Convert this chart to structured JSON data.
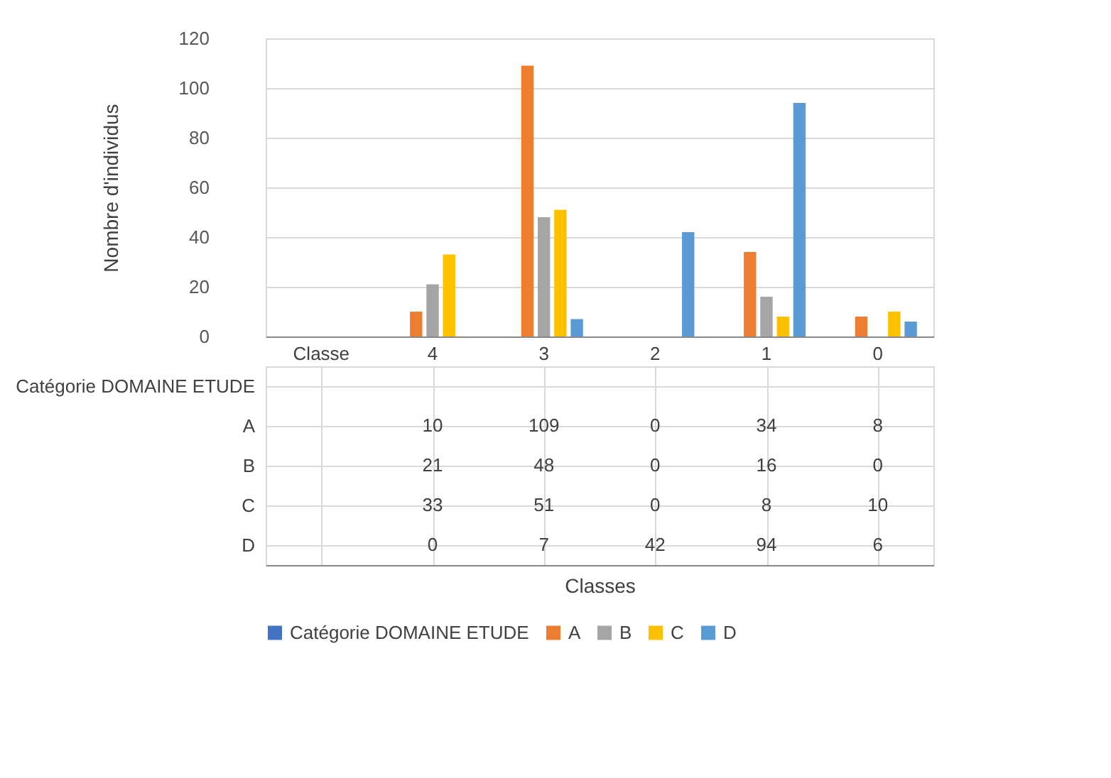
{
  "chart_data": {
    "type": "bar",
    "annotations": [
      "Classes"
    ],
    "ylabel": "Nombre d'individus",
    "categories": [
      "Classe",
      "4",
      "3",
      "2",
      "1",
      "0"
    ],
    "series": [
      {
        "name": "Catégorie DOMAINE ETUDE",
        "color": "#4472c4",
        "values": [
          null,
          null,
          null,
          null,
          null,
          null
        ]
      },
      {
        "name": "A",
        "color": "#ed7d31",
        "values": [
          null,
          10,
          109,
          0,
          34,
          8
        ]
      },
      {
        "name": "B",
        "color": "#a5a5a5",
        "values": [
          null,
          21,
          48,
          0,
          16,
          0
        ]
      },
      {
        "name": "C",
        "color": "#ffc000",
        "values": [
          null,
          33,
          51,
          0,
          8,
          10
        ]
      },
      {
        "name": "D",
        "color": "#5b9bd5",
        "values": [
          null,
          0,
          7,
          42,
          94,
          6
        ]
      }
    ],
    "ylim": [
      0,
      120
    ],
    "yticks": [
      0,
      20,
      40,
      60,
      80,
      100,
      120
    ],
    "grid": "y",
    "legend": "bottom",
    "data_labels": true
  }
}
